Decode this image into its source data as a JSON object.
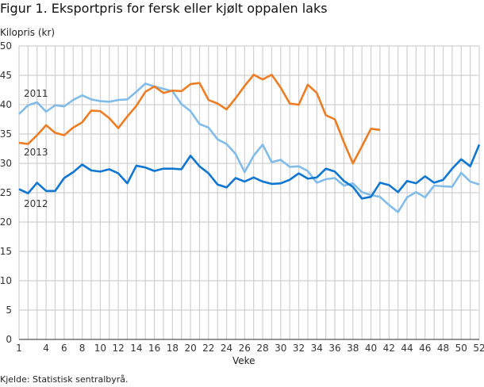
{
  "chart_data": {
    "type": "line",
    "title": "Figur 1. Eksportpris for fersk eller kjølt oppalen laks",
    "ylabel": "Kilopris (kr)",
    "xlabel": "Veke",
    "source": "Kjelde: Statistisk sentralbyrå.",
    "xlim": [
      1,
      52
    ],
    "ylim": [
      0,
      50
    ],
    "yticks": [
      0,
      5,
      10,
      15,
      20,
      25,
      30,
      35,
      40,
      45,
      50
    ],
    "xticks": [
      1,
      4,
      6,
      8,
      10,
      12,
      14,
      16,
      18,
      20,
      22,
      24,
      26,
      28,
      30,
      32,
      34,
      36,
      38,
      40,
      42,
      44,
      46,
      48,
      50,
      52
    ],
    "grid": true,
    "series": [
      {
        "name": "2011",
        "color": "#82bce8",
        "values": [
          38.4,
          39.9,
          40.4,
          38.8,
          39.9,
          39.7,
          40.8,
          41.6,
          40.9,
          40.6,
          40.5,
          40.8,
          40.9,
          42.2,
          43.6,
          43.1,
          42.7,
          42.3,
          40.1,
          38.9,
          36.7,
          36.1,
          34.1,
          33.3,
          31.6,
          28.5,
          31.3,
          33.2,
          30.2,
          30.6,
          29.4,
          29.5,
          28.7,
          26.7,
          27.3,
          27.5,
          26.2,
          26.6,
          25.1,
          24.6,
          24.3,
          22.9,
          21.7,
          24.2,
          25.1,
          24.2,
          26.2,
          26.1,
          26.0,
          28.4,
          26.9,
          26.4
        ]
      },
      {
        "name": "2012",
        "color": "#0f76d2",
        "values": [
          25.6,
          24.9,
          26.7,
          25.3,
          25.3,
          27.5,
          28.5,
          29.8,
          28.8,
          28.6,
          29.0,
          28.3,
          26.6,
          29.6,
          29.3,
          28.7,
          29.1,
          29.1,
          29.0,
          31.3,
          29.5,
          28.3,
          26.4,
          25.9,
          27.5,
          26.9,
          27.6,
          26.9,
          26.5,
          26.6,
          27.2,
          28.3,
          27.4,
          27.6,
          29.1,
          28.6,
          27.0,
          26.0,
          24.0,
          24.3,
          26.7,
          26.3,
          25.1,
          27.0,
          26.6,
          27.8,
          26.7,
          27.2,
          29.1,
          30.7,
          29.5,
          33.2
        ]
      },
      {
        "name": "2013",
        "color": "#ed7d24",
        "values": [
          33.5,
          33.3,
          34.8,
          36.5,
          35.2,
          34.8,
          36.1,
          37.0,
          39.0,
          38.9,
          37.7,
          36.0,
          38.0,
          39.8,
          42.2,
          43.1,
          42.0,
          42.4,
          42.3,
          43.5,
          43.7,
          40.8,
          40.2,
          39.2,
          41.1,
          43.2,
          45.1,
          44.3,
          45.1,
          42.9,
          40.2,
          40.0,
          43.4,
          42.0,
          38.2,
          37.5,
          33.6,
          30.0,
          32.9,
          35.9,
          35.7
        ]
      }
    ]
  }
}
